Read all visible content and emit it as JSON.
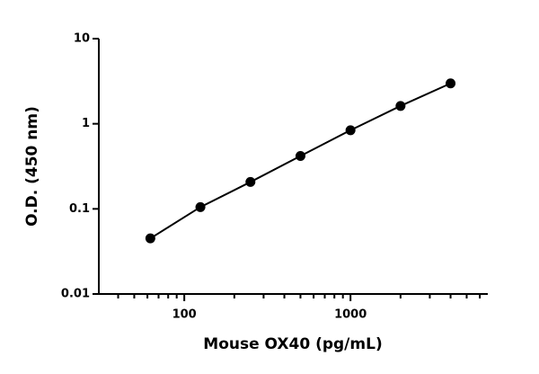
{
  "chart_data": {
    "type": "scatter",
    "x_label": "Mouse OX40 (pg/mL)",
    "y_label": "O.D. (450 nm)",
    "x_log": true,
    "y_log": true,
    "x": [
      62.5,
      125,
      250,
      500,
      1000,
      2000,
      4000
    ],
    "series": [
      {
        "name": "Mouse OX40",
        "color": "#000000",
        "values": [
          0.045,
          0.105,
          0.207,
          0.418,
          0.84,
          1.62,
          2.98
        ]
      }
    ],
    "xlim": [
      30.6,
      6700
    ],
    "ylim": [
      0.01,
      10
    ],
    "xticks": [
      100,
      1000
    ],
    "x_minor_ticks": [
      40,
      50,
      60,
      70,
      80,
      90,
      200,
      300,
      400,
      500,
      600,
      700,
      800,
      900,
      2000,
      3000,
      4000,
      5000,
      6000
    ],
    "yticks": [
      0.01,
      0.1,
      1,
      10
    ]
  }
}
